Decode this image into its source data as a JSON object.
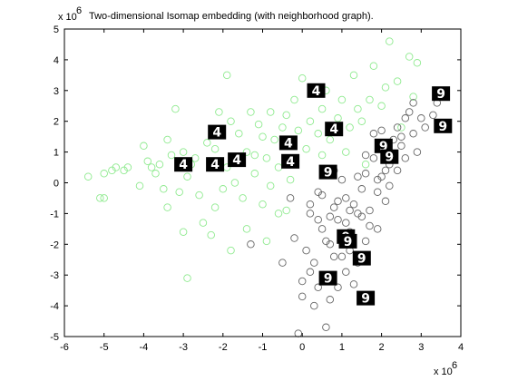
{
  "chart_data": {
    "type": "scatter",
    "title": "Two-dimensional Isomap embedding (with neighborhood graph).",
    "x_multiplier_label": "x 10",
    "x_multiplier_exp": "6",
    "y_multiplier_label": "x 10",
    "y_multiplier_exp": "6",
    "xlim": [
      -6,
      4
    ],
    "ylim": [
      -5,
      5
    ],
    "xticks": [
      "-6",
      "-5",
      "-4",
      "-3",
      "-2",
      "-1",
      "0",
      "1",
      "2",
      "3",
      "4"
    ],
    "yticks": [
      "-5",
      "-4",
      "-3",
      "-2",
      "-1",
      "0",
      "1",
      "2",
      "3",
      "4",
      "5"
    ],
    "grid": false,
    "marker": "open-circle",
    "series": [
      {
        "color": "#8fea8f",
        "points": [
          [
            -5.4,
            0.2
          ],
          [
            -5.1,
            -0.5
          ],
          [
            -5.0,
            0.3
          ],
          [
            -4.8,
            0.4
          ],
          [
            -4.7,
            0.5
          ],
          [
            -4.4,
            0.5
          ],
          [
            -4.0,
            1.2
          ],
          [
            -3.9,
            0.7
          ],
          [
            -3.8,
            0.5
          ],
          [
            -3.7,
            0.3
          ],
          [
            -3.5,
            -0.2
          ],
          [
            -3.4,
            -0.8
          ],
          [
            -3.3,
            0.9
          ],
          [
            -3.2,
            2.4
          ],
          [
            -3.1,
            -0.3
          ],
          [
            -3.0,
            1.0
          ],
          [
            -2.9,
            -3.1
          ],
          [
            -2.8,
            0.6
          ],
          [
            -2.6,
            -0.4
          ],
          [
            -2.5,
            -1.3
          ],
          [
            -2.4,
            1.3
          ],
          [
            -2.2,
            -0.8
          ],
          [
            -2.1,
            2.3
          ],
          [
            -2.0,
            -0.2
          ],
          [
            -1.9,
            3.5
          ],
          [
            -1.8,
            2.0
          ],
          [
            -1.7,
            0.0
          ],
          [
            -1.6,
            1.6
          ],
          [
            -1.5,
            -0.5
          ],
          [
            -1.4,
            -1.5
          ],
          [
            -1.3,
            2.3
          ],
          [
            -1.2,
            0.9
          ],
          [
            -1.1,
            1.9
          ],
          [
            -1.0,
            -0.7
          ],
          [
            -0.9,
            0.8
          ],
          [
            -0.8,
            2.3
          ],
          [
            -0.7,
            1.4
          ],
          [
            -0.6,
            -1.0
          ],
          [
            -0.5,
            1.8
          ],
          [
            -0.4,
            2.2
          ],
          [
            -0.3,
            0.1
          ],
          [
            -0.2,
            2.7
          ],
          [
            -0.1,
            1.7
          ],
          [
            0.0,
            3.4
          ],
          [
            0.1,
            1.1
          ],
          [
            0.2,
            2.0
          ],
          [
            0.3,
            3.1
          ],
          [
            0.5,
            2.4
          ],
          [
            0.6,
            3.0
          ],
          [
            0.7,
            1.4
          ],
          [
            0.9,
            2.1
          ],
          [
            1.0,
            2.7
          ],
          [
            1.1,
            1.0
          ],
          [
            1.3,
            3.5
          ],
          [
            1.5,
            2.0
          ],
          [
            1.6,
            0.6
          ],
          [
            1.8,
            3.8
          ],
          [
            2.0,
            2.5
          ],
          [
            2.2,
            4.6
          ],
          [
            2.4,
            3.3
          ],
          [
            2.5,
            1.8
          ],
          [
            2.7,
            4.1
          ],
          [
            2.8,
            2.8
          ],
          [
            2.9,
            3.9
          ],
          [
            -3.6,
            0.6
          ],
          [
            -2.7,
            0.8
          ],
          [
            -1.2,
            0.3
          ],
          [
            -0.8,
            -0.1
          ],
          [
            -2.3,
            -1.7
          ],
          [
            -3.0,
            -1.6
          ],
          [
            -1.8,
            -2.2
          ],
          [
            -0.9,
            -1.9
          ],
          [
            -0.4,
            -0.9
          ],
          [
            -4.1,
            -0.1
          ],
          [
            -3.4,
            1.4
          ],
          [
            -2.2,
            1.1
          ],
          [
            -1.4,
            1.0
          ],
          [
            -0.6,
            0.5
          ],
          [
            0.4,
            1.6
          ],
          [
            1.2,
            1.8
          ],
          [
            1.7,
            2.7
          ],
          [
            2.1,
            3.1
          ],
          [
            -4.5,
            0.4
          ],
          [
            -5.0,
            -0.5
          ],
          [
            -2.9,
            0.2
          ],
          [
            -1.9,
            0.5
          ],
          [
            -1.0,
            1.5
          ],
          [
            -0.2,
            0.6
          ],
          [
            0.5,
            0.9
          ],
          [
            1.4,
            2.4
          ]
        ]
      },
      {
        "color": "#666666",
        "points": [
          [
            -0.3,
            -0.5
          ],
          [
            -0.2,
            -1.8
          ],
          [
            0.0,
            -3.2
          ],
          [
            0.1,
            -2.2
          ],
          [
            0.2,
            -1.0
          ],
          [
            0.3,
            -2.6
          ],
          [
            0.4,
            -0.3
          ],
          [
            0.5,
            -1.5
          ],
          [
            0.6,
            -3.0
          ],
          [
            0.6,
            -4.7
          ],
          [
            0.7,
            -2.0
          ],
          [
            0.8,
            -0.8
          ],
          [
            0.9,
            -1.2
          ],
          [
            1.0,
            -2.4
          ],
          [
            1.1,
            -0.5
          ],
          [
            1.2,
            -1.6
          ],
          [
            1.3,
            -3.3
          ],
          [
            1.4,
            -1.0
          ],
          [
            1.5,
            -0.2
          ],
          [
            1.6,
            0.3
          ],
          [
            1.7,
            -1.4
          ],
          [
            1.8,
            0.8
          ],
          [
            1.9,
            0.1
          ],
          [
            2.0,
            1.1
          ],
          [
            2.1,
            -0.6
          ],
          [
            2.2,
            0.6
          ],
          [
            2.3,
            1.4
          ],
          [
            2.4,
            1.8
          ],
          [
            2.5,
            1.2
          ],
          [
            2.6,
            2.1
          ],
          [
            2.8,
            1.6
          ],
          [
            2.9,
            1.0
          ],
          [
            3.1,
            1.8
          ],
          [
            3.3,
            2.2
          ],
          [
            3.5,
            2.8
          ],
          [
            -0.1,
            -4.9
          ],
          [
            0.0,
            -3.7
          ],
          [
            0.3,
            -4.0
          ],
          [
            0.7,
            -3.8
          ],
          [
            0.9,
            -3.4
          ],
          [
            1.1,
            -2.9
          ],
          [
            1.2,
            -2.2
          ],
          [
            1.4,
            -2.6
          ],
          [
            1.6,
            -1.9
          ],
          [
            1.7,
            -0.9
          ],
          [
            1.9,
            -0.3
          ],
          [
            2.1,
            0.4
          ],
          [
            2.3,
            0.9
          ],
          [
            2.5,
            1.5
          ],
          [
            2.7,
            2.3
          ],
          [
            0.2,
            -0.7
          ],
          [
            0.4,
            -1.2
          ],
          [
            0.6,
            -1.9
          ],
          [
            0.8,
            -2.4
          ],
          [
            1.0,
            -1.7
          ],
          [
            1.2,
            -0.9
          ],
          [
            1.4,
            0.2
          ],
          [
            1.6,
            0.9
          ],
          [
            1.8,
            1.6
          ],
          [
            2.0,
            0.2
          ],
          [
            0.5,
            -0.4
          ],
          [
            0.7,
            -1.1
          ],
          [
            0.9,
            -0.6
          ],
          [
            1.1,
            -1.3
          ],
          [
            1.3,
            -0.7
          ],
          [
            1.5,
            -1.1
          ],
          [
            1.0,
            0.1
          ],
          [
            0.8,
            0.4
          ],
          [
            2.2,
            -0.1
          ],
          [
            2.4,
            0.4
          ],
          [
            -1.3,
            -2.0
          ],
          [
            -0.5,
            -2.6
          ],
          [
            0.2,
            -2.9
          ],
          [
            0.4,
            -3.4
          ],
          [
            1.9,
            -1.5
          ],
          [
            2.0,
            1.7
          ],
          [
            2.6,
            0.8
          ],
          [
            3.0,
            2.1
          ],
          [
            2.8,
            2.6
          ],
          [
            3.4,
            2.6
          ]
        ]
      }
    ],
    "digit_thumbnails": [
      {
        "label": "4",
        "x": 0.35,
        "y": 3.0
      },
      {
        "label": "4",
        "x": 0.8,
        "y": 1.75
      },
      {
        "label": "4",
        "x": -2.15,
        "y": 1.65
      },
      {
        "label": "4",
        "x": -0.35,
        "y": 1.3
      },
      {
        "label": "4",
        "x": -3.0,
        "y": 0.6
      },
      {
        "label": "4",
        "x": -2.2,
        "y": 0.6
      },
      {
        "label": "4",
        "x": -1.65,
        "y": 0.75
      },
      {
        "label": "4",
        "x": -0.3,
        "y": 0.7
      },
      {
        "label": "9",
        "x": 0.65,
        "y": 0.35
      },
      {
        "label": "9",
        "x": 2.05,
        "y": 1.2
      },
      {
        "label": "9",
        "x": 2.2,
        "y": 0.85
      },
      {
        "label": "9",
        "x": 3.5,
        "y": 2.9
      },
      {
        "label": "9",
        "x": 3.55,
        "y": 1.85
      },
      {
        "label": "9",
        "x": 1.1,
        "y": -1.75
      },
      {
        "label": "9",
        "x": 1.15,
        "y": -1.9
      },
      {
        "label": "9",
        "x": 1.5,
        "y": -2.45
      },
      {
        "label": "9",
        "x": 0.65,
        "y": -3.1
      },
      {
        "label": "9",
        "x": 1.6,
        "y": -3.75
      }
    ]
  }
}
